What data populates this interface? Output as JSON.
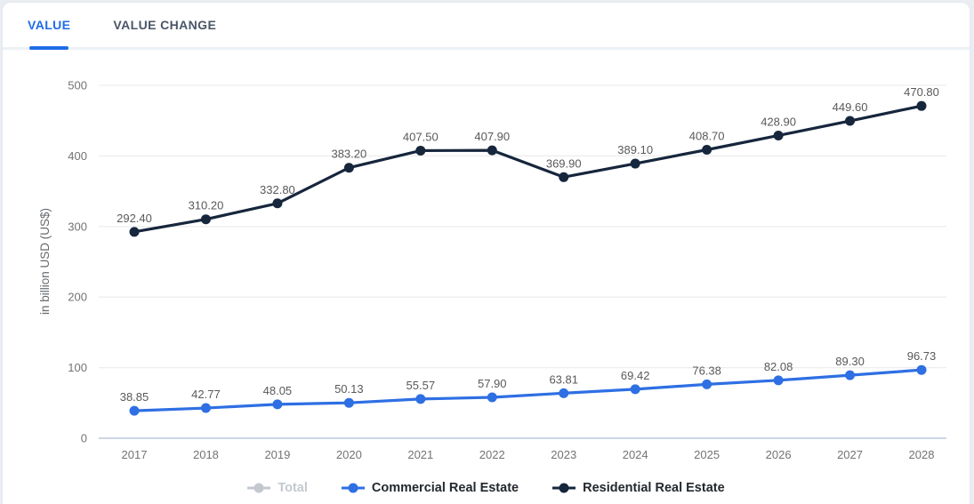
{
  "tabs": [
    {
      "label": "VALUE",
      "active": true
    },
    {
      "label": "VALUE CHANGE",
      "active": false
    }
  ],
  "colors": {
    "accent": "#1f6ce8",
    "grid": "#ededef",
    "zero_line": "#cdd6e6",
    "tick_text": "#737373",
    "value_label_text": "#58595b",
    "legend_text": "#23282e",
    "legend_disabled": "#c3c8cf"
  },
  "chart_data": {
    "type": "line",
    "x": [
      2017,
      2018,
      2019,
      2020,
      2021,
      2022,
      2023,
      2024,
      2025,
      2026,
      2027,
      2028
    ],
    "title": "",
    "xlabel": "",
    "ylabel": "in billion USD (US$)",
    "ylim": [
      0,
      500
    ],
    "yticks": [
      0,
      100,
      200,
      300,
      400,
      500
    ],
    "grid": true,
    "legend_position": "bottom",
    "point_labels": true,
    "series": [
      {
        "name": "Total",
        "color": "#c3c8cf",
        "visible": false,
        "values": []
      },
      {
        "name": "Commercial Real Estate",
        "color": "#2e6fe3",
        "visible": true,
        "values": [
          38.85,
          42.77,
          48.05,
          50.13,
          55.57,
          57.9,
          63.81,
          69.42,
          76.38,
          82.08,
          89.3,
          96.73
        ]
      },
      {
        "name": "Residential Real Estate",
        "color": "#16263c",
        "visible": true,
        "values": [
          292.4,
          310.2,
          332.8,
          383.2,
          407.5,
          407.9,
          369.9,
          389.1,
          408.7,
          428.9,
          449.6,
          470.8
        ]
      }
    ]
  }
}
